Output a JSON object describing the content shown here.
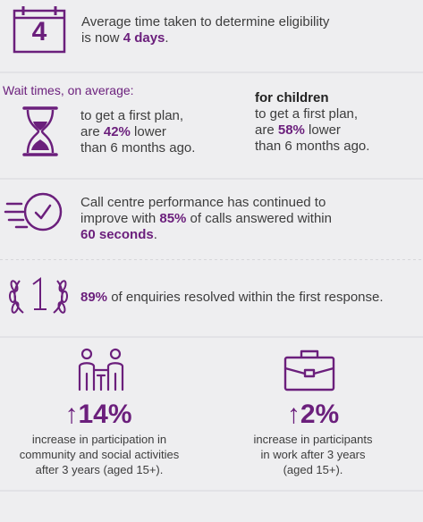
{
  "colors": {
    "accent": "#6b1f7c",
    "text": "#3d3d3d",
    "background": "#eeeef0"
  },
  "eligibility": {
    "icon": "calendar-icon",
    "calendar_number": "4",
    "line1": "Average time taken to determine eligibility",
    "line2_prefix": "is now ",
    "line2_value": "4 days",
    "line2_suffix": "."
  },
  "wait_times": {
    "heading": "Wait times, on average:",
    "icon": "hourglass-icon",
    "adults": {
      "line1": "to get a first plan,",
      "line2_prefix": "are ",
      "value": "42%",
      "line2_suffix": " lower",
      "line3": "than 6 months ago."
    },
    "children": {
      "heading": "for children",
      "line1": "to get a first plan,",
      "line2_prefix": "are ",
      "value": "58%",
      "line2_suffix": " lower",
      "line3": "than 6 months ago."
    }
  },
  "call_centre": {
    "icon": "fast-clock-icon",
    "line1": "Call centre performance has continued to",
    "line2_prefix": "improve with ",
    "value": "85%",
    "line2_suffix": " of calls answered within",
    "line3_value": "60 seconds",
    "line3_suffix": "."
  },
  "enquiries": {
    "icon": "first-place-laurel-icon",
    "value": "89%",
    "text": " of enquiries resolved within the first response."
  },
  "participation": {
    "icon": "people-network-icon",
    "arrow": "↑",
    "value": "14%",
    "line1": "increase in participation in",
    "line2": "community and social activities",
    "line3": "after 3 years (aged 15+)."
  },
  "work": {
    "icon": "briefcase-icon",
    "arrow": "↑",
    "value": "2%",
    "line1": "increase in participants",
    "line2": "in work after 3 years",
    "line3": "(aged 15+)."
  }
}
